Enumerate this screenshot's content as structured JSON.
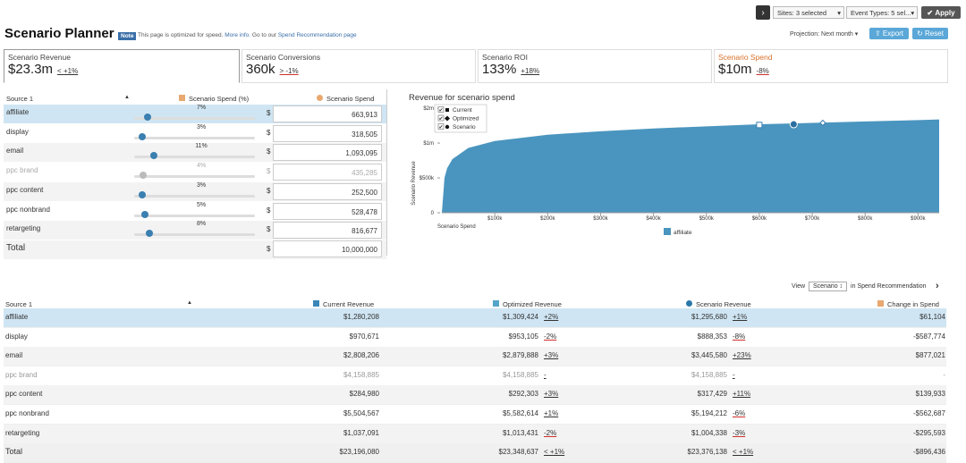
{
  "toolbar": {
    "sites": "Sites: 3 selected",
    "event_types": "Event Types: 5 sel...",
    "apply": "Apply"
  },
  "header": {
    "title": "Scenario Planner",
    "note_badge": "Note",
    "note": "This page is optimized for speed.",
    "more_info": "More info.",
    "go_to": "Go to our",
    "spend_link": "Spend Recommendation page",
    "projection": "Projection: Next month",
    "export": "Export",
    "reset": "Reset"
  },
  "kpis": [
    {
      "label": "Scenario Revenue",
      "value": "$23.3m",
      "delta": "< +1%"
    },
    {
      "label": "Scenario Conversions",
      "value": "360k",
      "delta": "> -1%"
    },
    {
      "label": "Scenario ROI",
      "value": "133%",
      "delta": "+18%"
    },
    {
      "label": "Scenario Spend",
      "value": "$10m",
      "delta": "-8%"
    }
  ],
  "spend_table": {
    "headers": [
      "Source 1",
      "Scenario Spend (%)",
      "Scenario Spend"
    ],
    "rows": [
      {
        "source": "affiliate",
        "percent": "7%",
        "currency": "$",
        "spend": "663,913"
      },
      {
        "source": "display",
        "percent": "3%",
        "currency": "$",
        "spend": "318,505"
      },
      {
        "source": "email",
        "percent": "11%",
        "currency": "$",
        "spend": "1,093,095"
      },
      {
        "source": "ppc brand",
        "percent": "4%",
        "currency": "$",
        "spend": "435,285"
      },
      {
        "source": "ppc content",
        "percent": "3%",
        "currency": "$",
        "spend": "252,500"
      },
      {
        "source": "ppc nonbrand",
        "percent": "5%",
        "currency": "$",
        "spend": "528,478"
      },
      {
        "source": "retargeting",
        "percent": "8%",
        "currency": "$",
        "spend": "816,677"
      }
    ],
    "total": {
      "label": "Total",
      "currency": "$",
      "spend": "10,000,000"
    }
  },
  "chart": {
    "type": "area",
    "title": "Revenue for scenario spend",
    "x_label": "Scenario Spend",
    "y_label": "Scenario Revenue",
    "series": [
      {
        "name": "affiliate",
        "color": "#4a95bf",
        "x": [
          0,
          5000,
          10000,
          20000,
          50000,
          100000,
          200000,
          300000,
          400000,
          500000,
          600000,
          700000,
          800000,
          900000,
          940000
        ],
        "values": [
          0,
          500000,
          640000,
          770000,
          930000,
          1030000,
          1120000,
          1170000,
          1210000,
          1240000,
          1270000,
          1290000,
          1310000,
          1330000,
          1340000
        ]
      }
    ],
    "markers": [
      {
        "name": "Current",
        "shape": "square",
        "x": 600000,
        "y": 1260000
      },
      {
        "name": "Optimized",
        "shape": "diamond",
        "x": 720000,
        "y": 1290000
      },
      {
        "name": "Scenario",
        "shape": "circle",
        "x": 665000,
        "y": 1270000
      }
    ],
    "xlim": [
      0,
      940000
    ],
    "ylim": [
      0,
      1540000
    ],
    "xticks": [
      {
        "value": 100000,
        "label": "$100k"
      },
      {
        "value": 200000,
        "label": "$200k"
      },
      {
        "value": 300000,
        "label": "$300k"
      },
      {
        "value": 400000,
        "label": "$400k"
      },
      {
        "value": 500000,
        "label": "$500k"
      },
      {
        "value": 600000,
        "label": "$600k"
      },
      {
        "value": 700000,
        "label": "$700k"
      },
      {
        "value": 800000,
        "label": "$800k"
      },
      {
        "value": 900000,
        "label": "$900k"
      }
    ],
    "yticks": [
      0,
      {
        "value": 500000,
        "label": "$500k"
      },
      {
        "value": 1000000,
        "label": "$1m"
      },
      {
        "value": 1500000,
        "label": "$2m"
      }
    ]
  },
  "view": {
    "label": "View",
    "select": "Scenario",
    "suffix": "in Spend Recommendation"
  },
  "revenue_table": {
    "headers": [
      "Source 1",
      "Current Revenue",
      "Optimized Revenue",
      "Scenario Revenue",
      "Change in Spend"
    ],
    "rows": [
      {
        "source": "affiliate",
        "current": "$1,280,208",
        "optimized": "$1,309,424",
        "optimized_delta": "+2%",
        "scenario": "$1,295,680",
        "scenario_delta": "+1%",
        "change": "$61,104"
      },
      {
        "source": "display",
        "current": "$970,671",
        "optimized": "$953,105",
        "optimized_delta": "-2%",
        "scenario": "$888,353",
        "scenario_delta": "-8%",
        "change": "-$587,774"
      },
      {
        "source": "email",
        "current": "$2,808,206",
        "optimized": "$2,879,888",
        "optimized_delta": "+3%",
        "scenario": "$3,445,580",
        "scenario_delta": "+23%",
        "change": "$877,021"
      },
      {
        "source": "ppc brand",
        "current": "$4,158,885",
        "optimized": "$4,158,885",
        "optimized_delta": "-",
        "scenario": "$4,158,885",
        "scenario_delta": "-",
        "change": "-"
      },
      {
        "source": "ppc content",
        "current": "$284,980",
        "optimized": "$292,303",
        "optimized_delta": "+3%",
        "scenario": "$317,429",
        "scenario_delta": "+11%",
        "change": "$139,933"
      },
      {
        "source": "ppc nonbrand",
        "current": "$5,504,567",
        "optimized": "$5,582,614",
        "optimized_delta": "+1%",
        "scenario": "$5,194,212",
        "scenario_delta": "-6%",
        "change": "-$562,687"
      },
      {
        "source": "retargeting",
        "current": "$1,037,091",
        "optimized": "$1,013,431",
        "optimized_delta": "-2%",
        "scenario": "$1,004,338",
        "scenario_delta": "-3%",
        "change": "-$295,593"
      }
    ],
    "total": {
      "source": "Total",
      "current": "$23,196,080",
      "optimized": "$23,348,637",
      "optimized_delta": "< +1%",
      "scenario": "$23,376,138",
      "scenario_delta": "< +1%",
      "change": "-$896,436"
    }
  }
}
